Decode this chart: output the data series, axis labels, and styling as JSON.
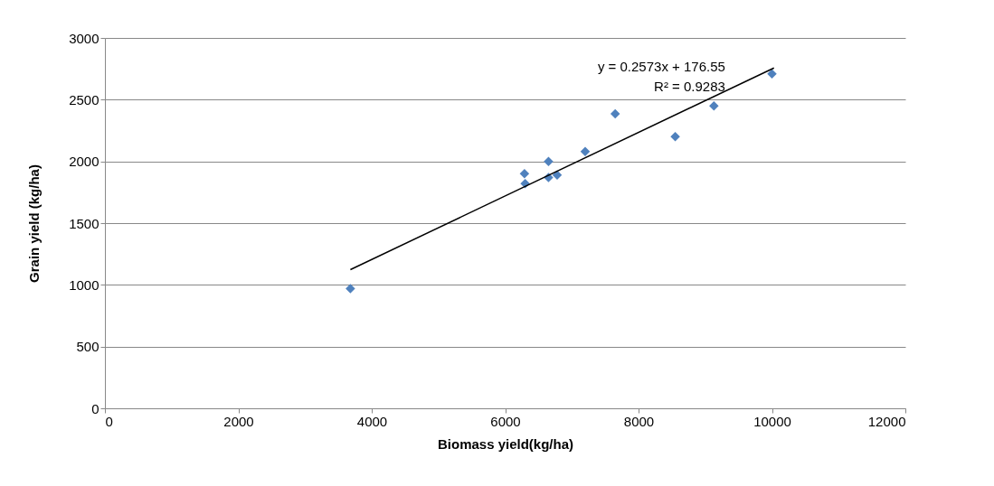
{
  "chart_data": {
    "type": "scatter",
    "xlabel": "Biomass yield(kg/ha)",
    "ylabel": "Grain yield (kg/ha)",
    "annotations": [
      "y = 0.2573x + 176.55",
      "R² = 0.9283"
    ],
    "xlim": [
      0,
      12000
    ],
    "xticks": [
      0,
      2000,
      4000,
      6000,
      8000,
      10000,
      12000
    ],
    "ylim": [
      0,
      3000
    ],
    "yticks": [
      0,
      500,
      1000,
      1500,
      2000,
      2500,
      3000
    ],
    "grid": "y",
    "legend": false,
    "marker": "diamond",
    "series": [
      {
        "color": "#4f81bd",
        "x": [
          3680,
          6290,
          6300,
          6650,
          6650,
          6780,
          7200,
          7650,
          8550,
          9130,
          10000
        ],
        "values": [
          970,
          1900,
          1820,
          2000,
          1870,
          1890,
          2080,
          2385,
          2200,
          2450,
          2710
        ]
      },
      {
        "type": "line",
        "color": "#000000",
        "marker": "none",
        "x": [
          3680,
          10030
        ],
        "values": [
          1123,
          2757
        ]
      }
    ]
  }
}
